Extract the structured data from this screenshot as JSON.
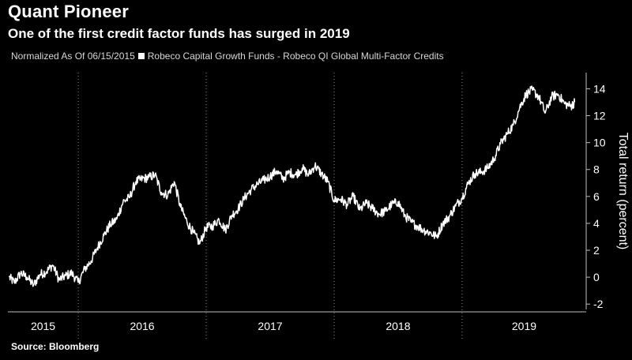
{
  "header": {
    "title": "Quant Pioneer",
    "subtitle": "One of the first credit factor funds has surged in 2019"
  },
  "legend": {
    "normalization": "Normalized As Of 06/15/2015",
    "series_label": "Robeco Capital Growth Funds - Robeco QI Global Multi-Factor Credits"
  },
  "footer": {
    "source": "Source: Bloomberg"
  },
  "colors": {
    "background": "#000000",
    "line": "#ffffff",
    "grid": "#8c8c8c"
  },
  "chart_data": {
    "type": "line",
    "title": "Quant Pioneer",
    "subtitle": "One of the first credit factor funds has surged in 2019",
    "ylabel": "Total return (percent)",
    "ylim": [
      -2.4,
      15.2
    ],
    "yticks": [
      -2,
      0,
      2,
      4,
      6,
      8,
      10,
      12,
      14
    ],
    "y_axis_side": "right",
    "xlim": [
      2015.45,
      2019.97
    ],
    "year_labels": [
      {
        "label": "2015",
        "mid": 2015.725
      },
      {
        "label": "2016",
        "mid": 2016.5
      },
      {
        "label": "2017",
        "mid": 2017.5
      },
      {
        "label": "2018",
        "mid": 2018.5
      },
      {
        "label": "2019",
        "mid": 2019.485
      }
    ],
    "year_boundaries": [
      2016,
      2017,
      2018,
      2019
    ],
    "grid": "vertical dotted lines at year boundaries",
    "legend_position": "top-left",
    "series": [
      {
        "name": "Robeco Capital Growth Funds - Robeco QI Global Multi-Factor Credits",
        "color": "#ffffff",
        "x": [
          2015.46,
          2015.5,
          2015.55,
          2015.6,
          2015.65,
          2015.7,
          2015.75,
          2015.8,
          2015.85,
          2015.9,
          2015.95,
          2016.0,
          2016.05,
          2016.1,
          2016.15,
          2016.2,
          2016.25,
          2016.3,
          2016.35,
          2016.4,
          2016.45,
          2016.5,
          2016.55,
          2016.6,
          2016.65,
          2016.7,
          2016.75,
          2016.8,
          2016.85,
          2016.9,
          2016.95,
          2017.0,
          2017.05,
          2017.1,
          2017.15,
          2017.2,
          2017.25,
          2017.3,
          2017.35,
          2017.4,
          2017.45,
          2017.5,
          2017.55,
          2017.6,
          2017.65,
          2017.7,
          2017.75,
          2017.8,
          2017.85,
          2017.9,
          2017.95,
          2018.0,
          2018.05,
          2018.1,
          2018.15,
          2018.2,
          2018.25,
          2018.3,
          2018.35,
          2018.4,
          2018.45,
          2018.5,
          2018.55,
          2018.6,
          2018.65,
          2018.7,
          2018.75,
          2018.8,
          2018.85,
          2018.9,
          2018.95,
          2019.0,
          2019.05,
          2019.1,
          2019.15,
          2019.2,
          2019.25,
          2019.3,
          2019.35,
          2019.4,
          2019.45,
          2019.5,
          2019.55,
          2019.6,
          2019.65,
          2019.7,
          2019.75,
          2019.8,
          2019.85,
          2019.88
        ],
        "values": [
          0.0,
          -0.4,
          0.3,
          0.0,
          -0.6,
          0.2,
          0.4,
          0.9,
          -0.2,
          0.1,
          0.3,
          -0.4,
          0.6,
          1.2,
          2.2,
          3.1,
          3.9,
          4.3,
          5.6,
          5.9,
          7.1,
          7.3,
          7.4,
          7.6,
          6.3,
          6.1,
          7.1,
          5.2,
          4.1,
          3.3,
          2.5,
          3.7,
          3.8,
          4.3,
          3.5,
          4.6,
          5.1,
          5.9,
          6.5,
          6.9,
          7.2,
          7.5,
          7.9,
          7.3,
          7.8,
          7.6,
          8.1,
          7.6,
          8.3,
          7.7,
          7.1,
          5.7,
          5.8,
          5.4,
          6.0,
          5.0,
          5.5,
          5.1,
          4.7,
          4.9,
          5.4,
          5.6,
          4.6,
          4.1,
          3.8,
          3.5,
          3.3,
          3.0,
          4.0,
          4.5,
          5.3,
          5.9,
          7.0,
          7.7,
          7.8,
          8.1,
          8.8,
          9.9,
          10.6,
          11.3,
          12.6,
          13.6,
          13.9,
          13.4,
          12.2,
          13.4,
          13.6,
          12.9,
          12.7,
          13.0
        ]
      }
    ]
  }
}
